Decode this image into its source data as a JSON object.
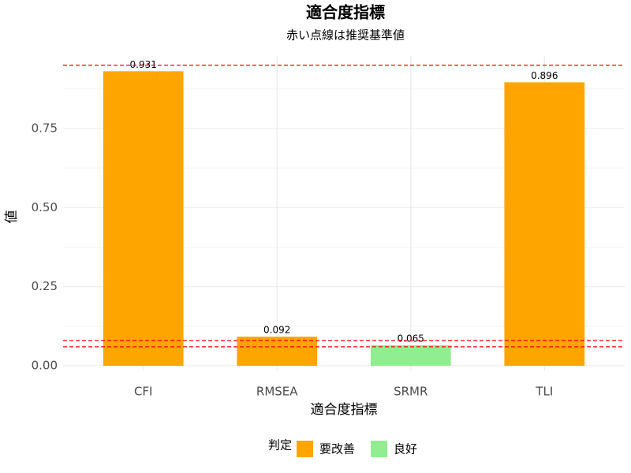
{
  "chart_data": {
    "type": "bar",
    "title": "適合度指標",
    "subtitle": "赤い点線は推奨基準値",
    "x_label": "適合度指標",
    "y_label": "値",
    "categories": [
      "CFI",
      "RMSEA",
      "SRMR",
      "TLI"
    ],
    "values": [
      0.931,
      0.092,
      0.065,
      0.896
    ],
    "groups": [
      "要改善",
      "要改善",
      "良好",
      "要改善"
    ],
    "legend": {
      "title": "判定",
      "items": [
        {
          "name": "要改善",
          "color": "#FFA500"
        },
        {
          "name": "良好",
          "color": "#90EE90"
        }
      ]
    },
    "reference_lines": [
      0.95,
      0.08,
      0.06
    ],
    "reference_color": "#FF0000",
    "ylim": [
      -0.016,
      0.98
    ],
    "yticks": [
      {
        "value": 0,
        "label": "0.00"
      },
      {
        "value": 0.25,
        "label": "0.25"
      },
      {
        "value": 0.5,
        "label": "0.50"
      },
      {
        "value": 0.75,
        "label": "0.75"
      }
    ],
    "y_minor_ticks": [
      0.125,
      0.375,
      0.625,
      0.875
    ],
    "grid": true
  }
}
